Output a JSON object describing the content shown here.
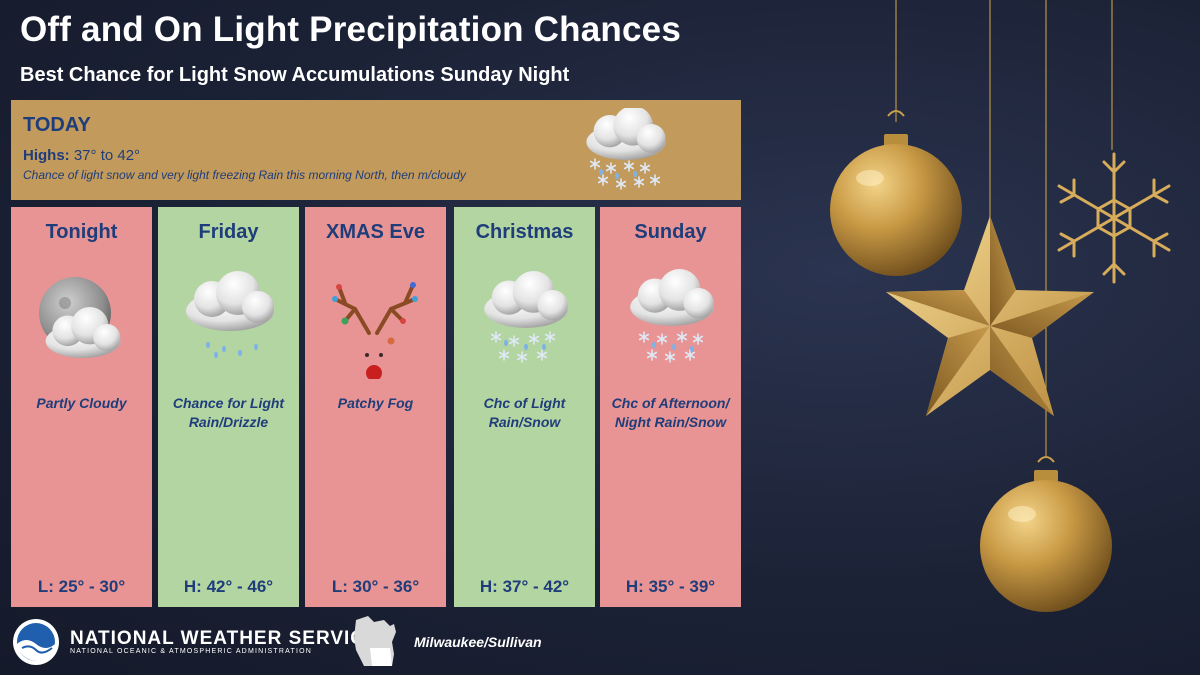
{
  "header": {
    "title": "Off and On Light Precipitation Chances",
    "subtitle": "Best Chance for Light Snow Accumulations Sunday Night"
  },
  "today": {
    "title": "TODAY",
    "highs_label": "Highs:",
    "highs_value": "37° to 42°",
    "description": "Chance of light snow and very light freezing Rain this morning North, then m/cloudy",
    "icon": "cloud-snow-icon"
  },
  "forecast": [
    {
      "title": "Tonight",
      "desc": "Partly Cloudy",
      "temp": "L: 25° - 30°",
      "icon": "moon-cloud-icon",
      "bg": "#e89494"
    },
    {
      "title": "Friday",
      "desc": "Chance for Light Rain/Drizzle",
      "temp": "H: 42° - 46°",
      "icon": "cloud-drizzle-icon",
      "bg": "#b3d5a2"
    },
    {
      "title": "XMAS Eve",
      "desc": "Patchy Fog",
      "temp": "L: 30° - 36°",
      "icon": "reindeer-icon",
      "bg": "#e89494"
    },
    {
      "title": "Christmas",
      "desc": "Chc of Light Rain/Snow",
      "temp": "H: 37° - 42°",
      "icon": "cloud-rain-snow-icon",
      "bg": "#b3d5a2"
    },
    {
      "title": "Sunday",
      "desc": "Chc of Afternoon/ Night Rain/Snow",
      "temp": "H: 35° - 39°",
      "icon": "cloud-rain-snow-icon",
      "bg": "#e89494"
    }
  ],
  "footer": {
    "agency": "NATIONAL WEATHER SERVICE",
    "agency_sub": "NATIONAL OCEANIC & ATMOSPHERIC ADMINISTRATION",
    "office": "Milwaukee/Sullivan",
    "logo_icon": "noaa-logo-icon",
    "map_icon": "wisconsin-map-icon"
  },
  "colors": {
    "title_blue": "#1f3d7a",
    "today_bg": "#c29a5c",
    "warm_card": "#e89494",
    "cool_card": "#b3d5a2",
    "gold": "#c9a04a"
  }
}
